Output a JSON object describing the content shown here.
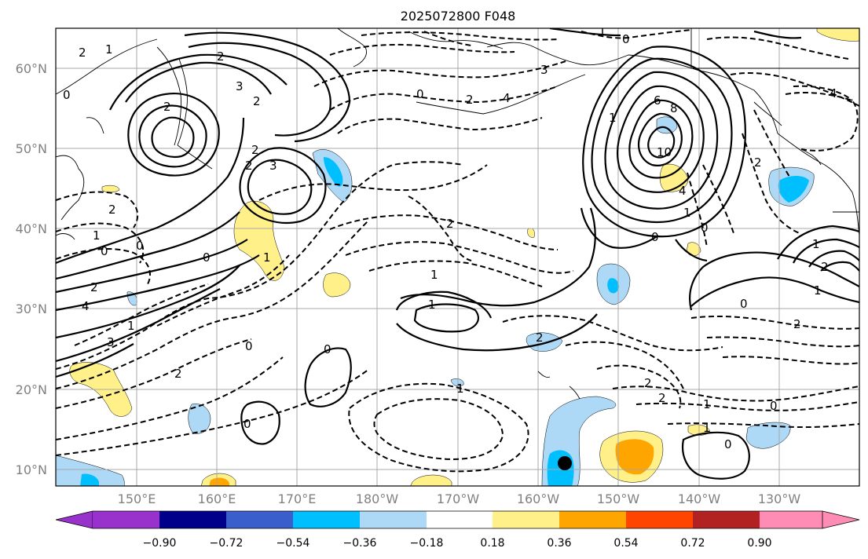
{
  "title": "2025072800 F048",
  "map": {
    "lat_labels": [
      "60°N",
      "50°N",
      "40°N",
      "30°N",
      "20°N",
      "10°N"
    ],
    "lon_labels": [
      "150°E",
      "160°E",
      "170°E",
      "180°W",
      "170°W",
      "160°W",
      "150°W",
      "140°W",
      "130°W"
    ],
    "contour_labels": [
      "2",
      "3",
      "2",
      "2",
      "3",
      "2",
      "2",
      "1",
      "0",
      "2",
      "3",
      "4",
      "1",
      "2",
      "0",
      "4",
      "2",
      "0",
      "1",
      "6",
      "8",
      "10",
      "4",
      "0",
      "0",
      "1",
      "2",
      "1",
      "0",
      "2",
      "0",
      "1",
      "2",
      "0",
      "1",
      "0",
      "0",
      "2",
      "1",
      "0",
      "2",
      "1",
      "1",
      "2",
      "2",
      "4",
      "1",
      "2",
      "1",
      "0",
      "1",
      "1",
      "0",
      "3"
    ],
    "colors": {
      "purple": "#9932cc",
      "navy": "#00008b",
      "royal": "#3a5fcd",
      "deep_sky": "#00bfff",
      "light_blue": "#add8f6",
      "white": "#ffffff",
      "light_yellow": "#fff08a",
      "orange": "#ffa500",
      "orange_red": "#ff4500",
      "firebrick": "#b22222",
      "pink": "#ff8cb4"
    }
  },
  "colorbar": {
    "ticks": [
      "−0.90",
      "−0.72",
      "−0.54",
      "−0.36",
      "−0.18",
      "0.18",
      "0.36",
      "0.54",
      "0.72",
      "0.90"
    ]
  }
}
